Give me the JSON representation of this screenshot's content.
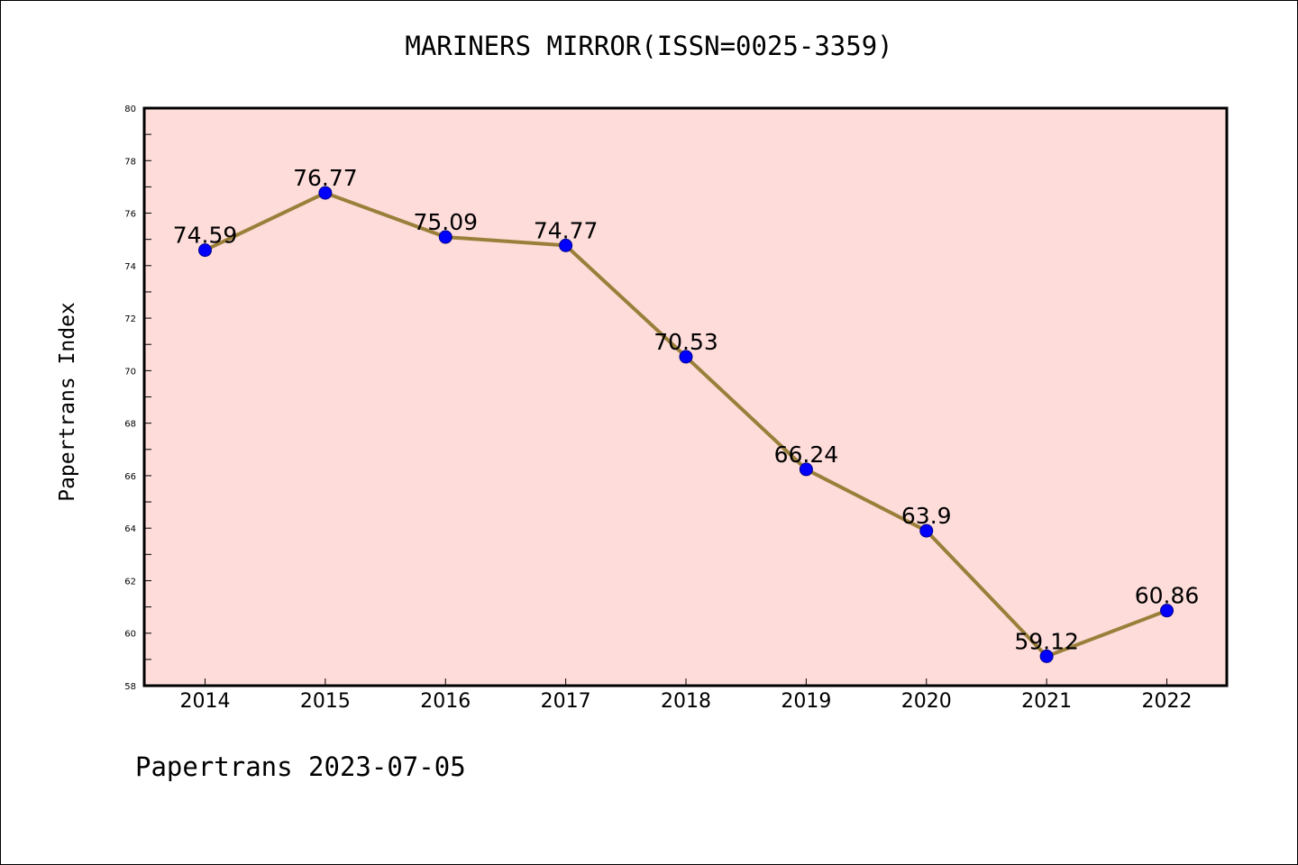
{
  "chart_data": {
    "type": "line",
    "title": "MARINERS MIRROR(ISSN=0025-3359)",
    "ylabel": "Papertrans Index",
    "xlabel": "",
    "categories": [
      "2014",
      "2015",
      "2016",
      "2017",
      "2018",
      "2019",
      "2020",
      "2021",
      "2022"
    ],
    "series": [
      {
        "values": [
          74.59,
          76.77,
          75.09,
          74.77,
          70.53,
          66.24,
          63.9,
          59.12,
          60.86
        ]
      }
    ],
    "data_labels": [
      "74.59",
      "76.77",
      "75.09",
      "74.77",
      "70.53",
      "66.24",
      "63.9",
      "59.12",
      "60.86"
    ],
    "ylim": [
      58,
      80
    ],
    "yticks": [
      "58",
      "60",
      "62",
      "64",
      "66",
      "68",
      "70",
      "72",
      "74",
      "76",
      "78",
      "80"
    ],
    "grid": false,
    "colors": {
      "plot_background": "#fddcd9",
      "line": "#9a7f3a",
      "marker": "#0000ff"
    }
  },
  "footer": "Papertrans 2023-07-05"
}
